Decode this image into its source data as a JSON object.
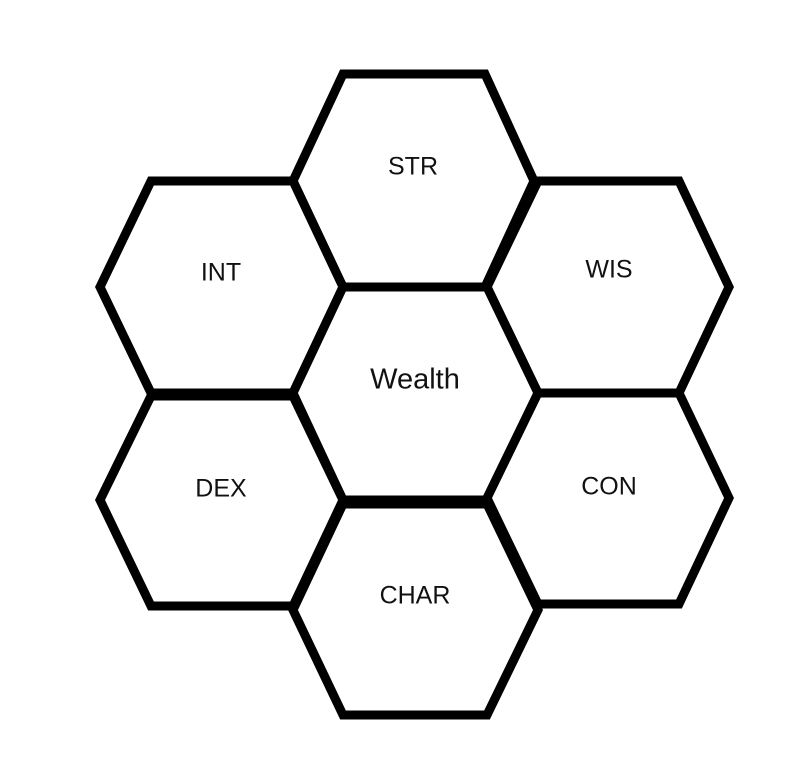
{
  "diagram": {
    "center": {
      "label": "Wealth"
    },
    "top": {
      "label": "STR"
    },
    "upper_left": {
      "label": "INT"
    },
    "upper_right": {
      "label": "WIS"
    },
    "lower_left": {
      "label": "DEX"
    },
    "lower_right": {
      "label": "CON"
    },
    "bottom": {
      "label": "CHAR"
    },
    "colors": {
      "stroke": "#000000",
      "fill": "#ffffff",
      "text": "#111111"
    }
  }
}
